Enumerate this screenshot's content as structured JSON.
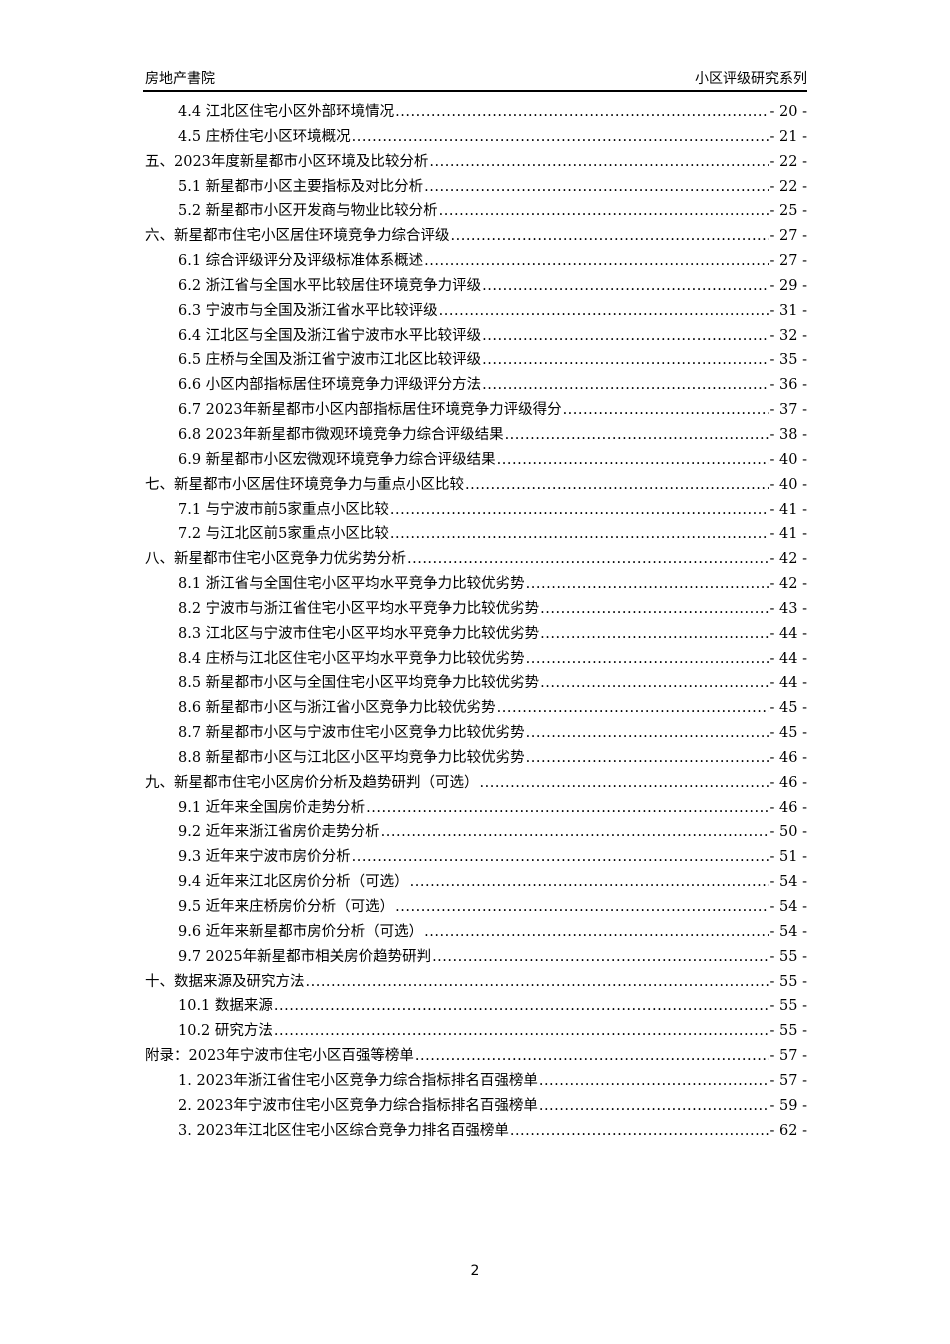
{
  "header": {
    "left": "房地产書院",
    "right": "小区评级研究系列"
  },
  "toc": [
    {
      "level": 2,
      "title": "4.4 江北区住宅小区外部环境情况",
      "page": "- 20 -"
    },
    {
      "level": 2,
      "title": "4.5 庄桥住宅小区环境概况",
      "page": "- 21 -"
    },
    {
      "level": 1,
      "title": "五、2023年度新星都市小区环境及比较分析",
      "page": "- 22 -"
    },
    {
      "level": 2,
      "title": "5.1 新星都市小区主要指标及对比分析",
      "page": "- 22 -"
    },
    {
      "level": 2,
      "title": "5.2 新星都市小区开发商与物业比较分析",
      "page": "- 25 -"
    },
    {
      "level": 1,
      "title": "六、新星都市住宅小区居住环境竞争力综合评级",
      "page": "- 27 -"
    },
    {
      "level": 2,
      "title": "6.1 综合评级评分及评级标准体系概述",
      "page": "- 27 -"
    },
    {
      "level": 2,
      "title": "6.2 浙江省与全国水平比较居住环境竞争力评级",
      "page": "- 29 -"
    },
    {
      "level": 2,
      "title": "6.3 宁波市与全国及浙江省水平比较评级",
      "page": "- 31 -"
    },
    {
      "level": 2,
      "title": "6.4 江北区与全国及浙江省宁波市水平比较评级",
      "page": "- 32 -"
    },
    {
      "level": 2,
      "title": "6.5 庄桥与全国及浙江省宁波市江北区比较评级",
      "page": "- 35 -"
    },
    {
      "level": 2,
      "title": "6.6 小区内部指标居住环境竞争力评级评分方法",
      "page": "- 36 -"
    },
    {
      "level": 2,
      "title": "6.7 2023年新星都市小区内部指标居住环境竞争力评级得分",
      "page": "- 37 -"
    },
    {
      "level": 2,
      "title": "6.8 2023年新星都市微观环境竞争力综合评级结果",
      "page": "- 38 -"
    },
    {
      "level": 2,
      "title": "6.9 新星都市小区宏微观环境竞争力综合评级结果",
      "page": "- 40 -"
    },
    {
      "level": 1,
      "title": "七、新星都市小区居住环境竞争力与重点小区比较",
      "page": "- 40 -"
    },
    {
      "level": 2,
      "title": "7.1 与宁波市前5家重点小区比较",
      "page": "- 41 -"
    },
    {
      "level": 2,
      "title": "7.2 与江北区前5家重点小区比较",
      "page": "- 41 -"
    },
    {
      "level": 1,
      "title": "八、新星都市住宅小区竞争力优劣势分析",
      "page": "- 42 -"
    },
    {
      "level": 2,
      "title": "8.1 浙江省与全国住宅小区平均水平竞争力比较优劣势",
      "page": "- 42 -"
    },
    {
      "level": 2,
      "title": "8.2 宁波市与浙江省住宅小区平均水平竞争力比较优劣势",
      "page": "- 43 -"
    },
    {
      "level": 2,
      "title": "8.3 江北区与宁波市住宅小区平均水平竞争力比较优劣势",
      "page": "- 44 -"
    },
    {
      "level": 2,
      "title": "8.4 庄桥与江北区住宅小区平均水平竞争力比较优劣势",
      "page": "- 44 -"
    },
    {
      "level": 2,
      "title": "8.5 新星都市小区与全国住宅小区平均竞争力比较优劣势",
      "page": "- 44 -"
    },
    {
      "level": 2,
      "title": "8.6 新星都市小区与浙江省小区竞争力比较优劣势",
      "page": "- 45 -"
    },
    {
      "level": 2,
      "title": "8.7 新星都市小区与宁波市住宅小区竞争力比较优劣势",
      "page": "- 45 -"
    },
    {
      "level": 2,
      "title": "8.8 新星都市小区与江北区小区平均竞争力比较优劣势",
      "page": "- 46 -"
    },
    {
      "level": 1,
      "title": "九、新星都市住宅小区房价分析及趋势研判（可选）",
      "page": "- 46 -"
    },
    {
      "level": 2,
      "title": "9.1 近年来全国房价走势分析",
      "page": "- 46 -"
    },
    {
      "level": 2,
      "title": "9.2 近年来浙江省房价走势分析",
      "page": "- 50 -"
    },
    {
      "level": 2,
      "title": "9.3 近年来宁波市房价分析",
      "page": "- 51 -"
    },
    {
      "level": 2,
      "title": "9.4 近年来江北区房价分析（可选）",
      "page": "- 54 -"
    },
    {
      "level": 2,
      "title": "9.5 近年来庄桥房价分析（可选）",
      "page": "- 54 -"
    },
    {
      "level": 2,
      "title": "9.6 近年来新星都市房价分析（可选）",
      "page": "- 54 -"
    },
    {
      "level": 2,
      "title": "9.7 2025年新星都市相关房价趋势研判",
      "page": "- 55 -"
    },
    {
      "level": 1,
      "title": "十、数据来源及研究方法",
      "page": "- 55 -"
    },
    {
      "level": 2,
      "title": "10.1 数据来源",
      "page": "- 55 -"
    },
    {
      "level": 2,
      "title": "10.2 研究方法",
      "page": "- 55 -"
    },
    {
      "level": 1,
      "title": "附录：2023年宁波市住宅小区百强等榜单",
      "page": "- 57 -"
    },
    {
      "level": 2,
      "title": "1. 2023年浙江省住宅小区竞争力综合指标排名百强榜单",
      "page": "- 57 -"
    },
    {
      "level": 2,
      "title": "2. 2023年宁波市住宅小区竞争力综合指标排名百强榜单",
      "page": "- 59 -"
    },
    {
      "level": 2,
      "title": "3. 2023年江北区住宅小区综合竞争力排名百强榜单",
      "page": "- 62 -"
    }
  ],
  "page_number": "2"
}
